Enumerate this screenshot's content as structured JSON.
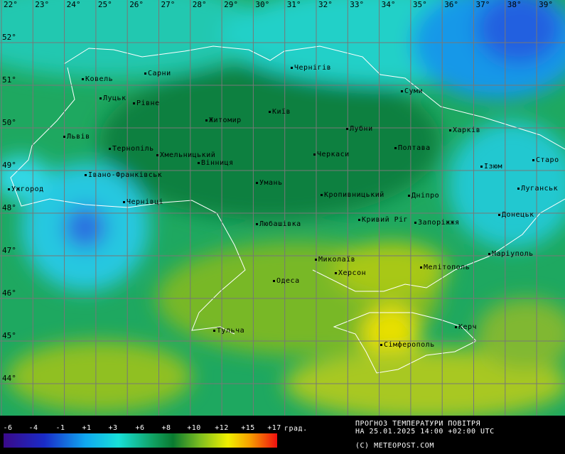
{
  "map": {
    "lon_labels": [
      "22°",
      "23°",
      "24°",
      "25°",
      "26°",
      "27°",
      "28°",
      "29°",
      "30°",
      "31°",
      "32°",
      "33°",
      "34°",
      "35°",
      "36°",
      "37°",
      "38°",
      "39°"
    ],
    "lat_labels": [
      "52°",
      "51°",
      "50°",
      "49°",
      "48°",
      "47°",
      "46°",
      "45°",
      "44°"
    ],
    "cities": [
      "Ковель",
      "Сарни",
      "Луцьк",
      "Рівне",
      "Чернігів",
      "Суми",
      "Житомир",
      "Київ",
      "Лубни",
      "Харків",
      "Львів",
      "Тернопіль",
      "Хмельницький",
      "Вінниця",
      "Черкаси",
      "Полтава",
      "Ізюм",
      "Старо",
      "Івано-Франківськ",
      "Ужгород",
      "Умань",
      "Кропивницький",
      "Дніпро",
      "Луганськ",
      "Чернівці",
      "Кривий Ріг",
      "Запоріжжя",
      "Донецьк",
      "Любашівка",
      "Миколаїв",
      "Маріуполь",
      "Херсон",
      "Мелітополь",
      "Одеса",
      "Тульча",
      "Керч",
      "Сімферополь"
    ]
  },
  "legend": {
    "ticks": [
      "-6",
      "-4",
      "-1",
      "+1",
      "+3",
      "+6",
      "+8",
      "+10",
      "+12",
      "+15",
      "+17"
    ],
    "unit": "град."
  },
  "footer": {
    "title": "ПРОГНОЗ ТЕМПЕРАТУРИ ПОВІТРЯ",
    "date": "НА 25.01.2025 14:00 +02:00 UTC",
    "copyright": "(C) METEOPOST.COM"
  }
}
